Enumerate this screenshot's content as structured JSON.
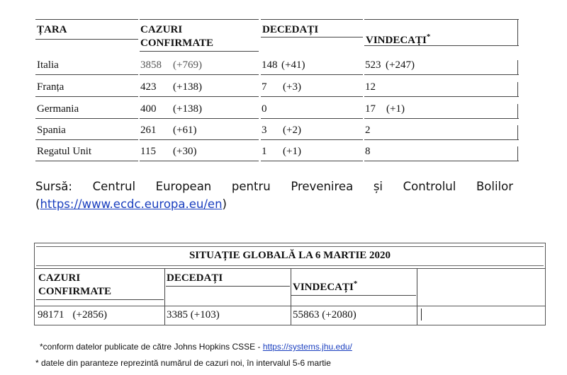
{
  "country_table": {
    "headers": {
      "country": "ȚARA",
      "confirmed": "CAZURI CONFIRMATE",
      "deaths": "DECEDAȚI",
      "recovered": "VINDECAȚI",
      "recovered_mark": "*"
    },
    "rows": [
      {
        "country": "Italia",
        "confirmed": "3858",
        "confirmed_new": "(+769)",
        "deaths": "148",
        "deaths_new": "(+41)",
        "recovered": "523",
        "recovered_new": "(+247)"
      },
      {
        "country": "Franța",
        "confirmed": "423",
        "confirmed_new": "(+138)",
        "deaths": "7",
        "deaths_new": "(+3)",
        "recovered": "12",
        "recovered_new": ""
      },
      {
        "country": "Germania",
        "confirmed": "400",
        "confirmed_new": "(+138)",
        "deaths": "0",
        "deaths_new": "",
        "recovered": "17",
        "recovered_new": "(+1)"
      },
      {
        "country": "Spania",
        "confirmed": "261",
        "confirmed_new": "(+61)",
        "deaths": "3",
        "deaths_new": "(+2)",
        "recovered": "2",
        "recovered_new": ""
      },
      {
        "country": "Regatul Unit",
        "confirmed": "115",
        "confirmed_new": "(+30)",
        "deaths": "1",
        "deaths_new": "(+1)",
        "recovered": "8",
        "recovered_new": ""
      }
    ]
  },
  "source": {
    "label": "Sursă: Centrul European pentru Prevenirea și Controlul Bolilor",
    "link_open": "(",
    "link": "https://www.ecdc.europa.eu/en",
    "link_close": ")"
  },
  "global_table": {
    "title": "SITUAȚIE GLOBALĂ LA 6 MARTIE 2020",
    "headers": {
      "confirmed": "CAZURI CONFIRMATE",
      "deaths": "DECEDAȚI",
      "recovered": "VINDECAȚI",
      "recovered_mark": "*"
    },
    "values": {
      "confirmed": "98171",
      "confirmed_new": "(+2856)",
      "deaths": "3385",
      "deaths_new": "(+103)",
      "recovered": "55863",
      "recovered_new": "(+2080)"
    }
  },
  "footnotes": {
    "note1_text": "*conform datelor publicate de către Johns Hopkins CSSE - ",
    "note1_link": "https://systems.jhu.edu/",
    "note2": "* datele din paranteze reprezintă numărul de cazuri noi, în intervalul 5-6 martie"
  },
  "colors": {
    "link": "#1a3fbf",
    "border": "#444444"
  }
}
